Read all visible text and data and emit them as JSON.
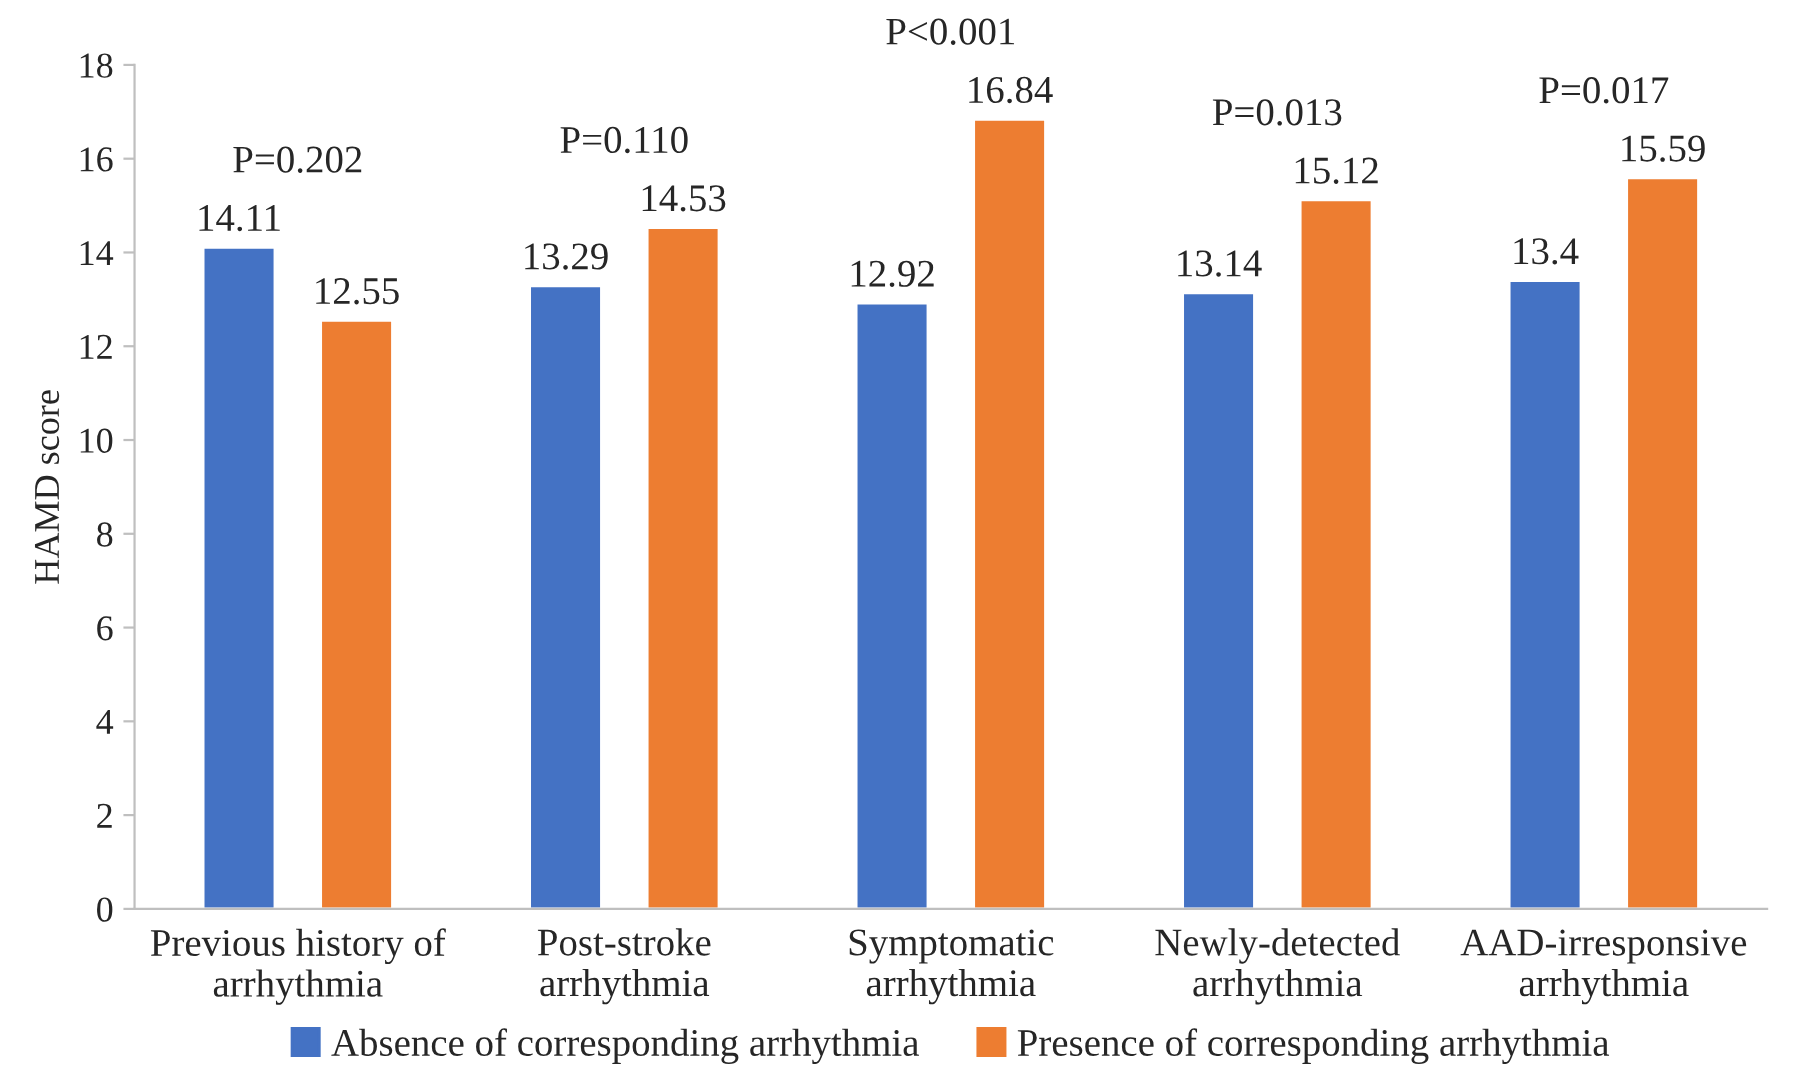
{
  "chart_data": {
    "type": "bar",
    "ylabel": "HAMD score",
    "categories": [
      "Previous history of\narrhythmia",
      "Post-stroke\narrhythmia",
      "Symptomatic\narrhythmia",
      "Newly-detected\narrhythmia",
      "AAD-irresponsive\narrhythmia"
    ],
    "series": [
      {
        "name": "Absence of corresponding arrhythmia",
        "color": "#4472c4",
        "values": [
          14.11,
          13.29,
          12.92,
          13.14,
          13.4
        ]
      },
      {
        "name": "Presence of corresponding arrhythmia",
        "color": "#ed7d31",
        "values": [
          12.55,
          14.53,
          16.84,
          15.12,
          15.59
        ]
      }
    ],
    "ylim": [
      0,
      18
    ],
    "yticks": [
      0,
      2,
      4,
      6,
      8,
      10,
      12,
      14,
      16,
      18
    ],
    "data_labels": true,
    "grid": false,
    "legend": "bottom",
    "annotations": [
      "P=0.202",
      "P=0.110",
      "P<0.001",
      "P=0.013",
      "P=0.017"
    ]
  }
}
